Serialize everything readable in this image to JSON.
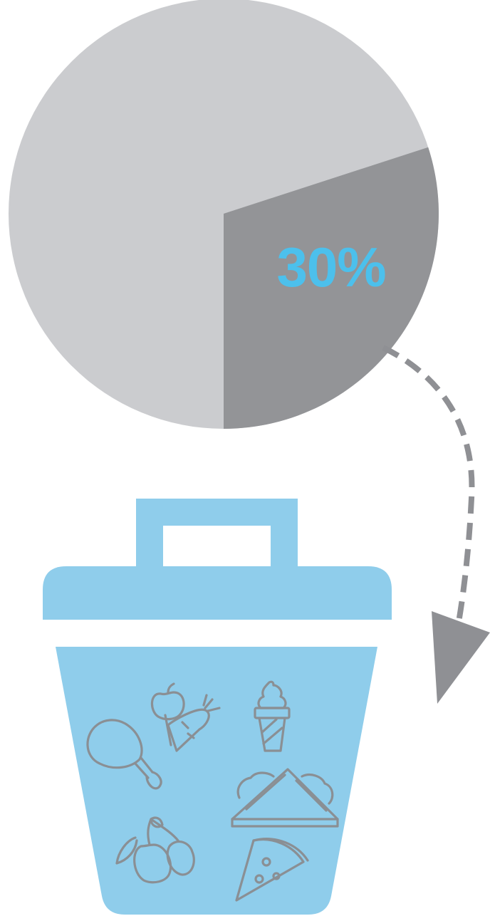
{
  "colors": {
    "pie_main": "#cbcccf",
    "pie_highlight": "#939497",
    "percent_text": "#4cc0ec",
    "arrow": "#8f9094",
    "bin_fill": "#8fcdeb",
    "bin_gap": "#ffffff",
    "food_icons": "#8a8f94"
  },
  "chart_data": {
    "type": "pie",
    "slices": [
      {
        "value": 70,
        "color": "#cbcccf"
      },
      {
        "value": 30,
        "color": "#939497",
        "label": "30%"
      }
    ],
    "highlight_label": "30%"
  },
  "illustration": {
    "arrow": "dashed-curved-arrow",
    "container": "trash-bin-icon",
    "food_icons": [
      "chicken-leg-icon",
      "apple-carrot-icon",
      "ice-cream-cone-icon",
      "sandwich-icon",
      "cherries-icon",
      "pizza-slice-icon"
    ]
  }
}
